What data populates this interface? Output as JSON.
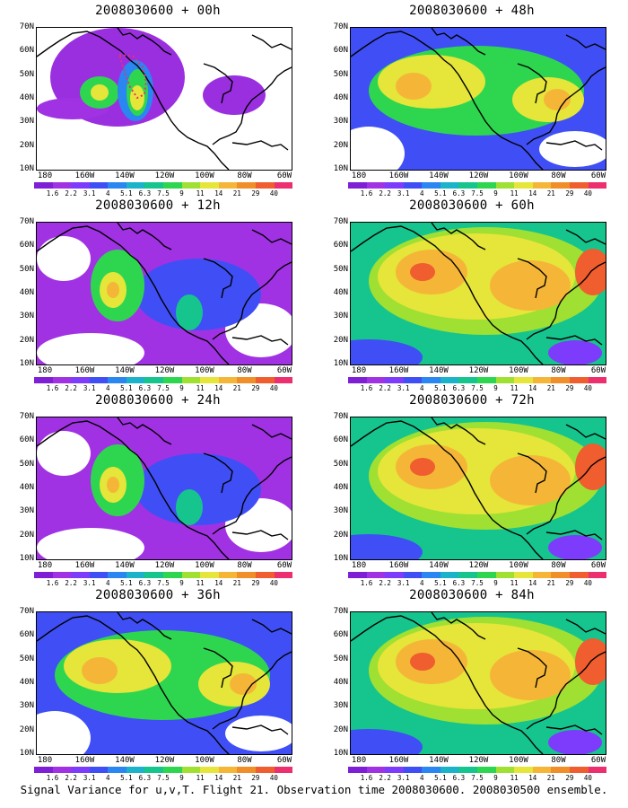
{
  "figure_caption": "Signal Variance for u,v,T. Flight 21. Observation time 2008030600. 2008030500 ensemble.",
  "lat_labels": [
    "70N",
    "60N",
    "50N",
    "40N",
    "30N",
    "20N",
    "10N"
  ],
  "lon_labels": [
    "180",
    "160W",
    "140W",
    "120W",
    "100W",
    "80W",
    "60W"
  ],
  "colorbar": {
    "labels": [
      "1.6",
      "2.2",
      "3.1",
      "4",
      "5.1",
      "6.3",
      "7.5",
      "9",
      "11",
      "14",
      "21",
      "29",
      "40"
    ],
    "colors": [
      "#7e1fd6",
      "#a132e3",
      "#7d3cfb",
      "#3f4ff5",
      "#2a86f0",
      "#1bb3c9",
      "#16c58d",
      "#2ed650",
      "#9fe033",
      "#e5e53a",
      "#f5b638",
      "#f08e2a",
      "#f05d2e",
      "#ec2f6e"
    ]
  },
  "panels": [
    {
      "id": "p00",
      "title": "2008030600 + 00h",
      "col": 0,
      "row": 0,
      "level": 0
    },
    {
      "id": "p48",
      "title": "2008030600 + 48h",
      "col": 1,
      "row": 0,
      "level": 2
    },
    {
      "id": "p12",
      "title": "2008030600 + 12h",
      "col": 0,
      "row": 1,
      "level": 1
    },
    {
      "id": "p60",
      "title": "2008030600 + 60h",
      "col": 1,
      "row": 1,
      "level": 3
    },
    {
      "id": "p24",
      "title": "2008030600 + 24h",
      "col": 0,
      "row": 2,
      "level": 1
    },
    {
      "id": "p72",
      "title": "2008030600 + 72h",
      "col": 1,
      "row": 2,
      "level": 3
    },
    {
      "id": "p36",
      "title": "2008030600 + 36h",
      "col": 0,
      "row": 3,
      "level": 2
    },
    {
      "id": "p84",
      "title": "2008030600 + 84h",
      "col": 1,
      "row": 3,
      "level": 3
    }
  ]
}
